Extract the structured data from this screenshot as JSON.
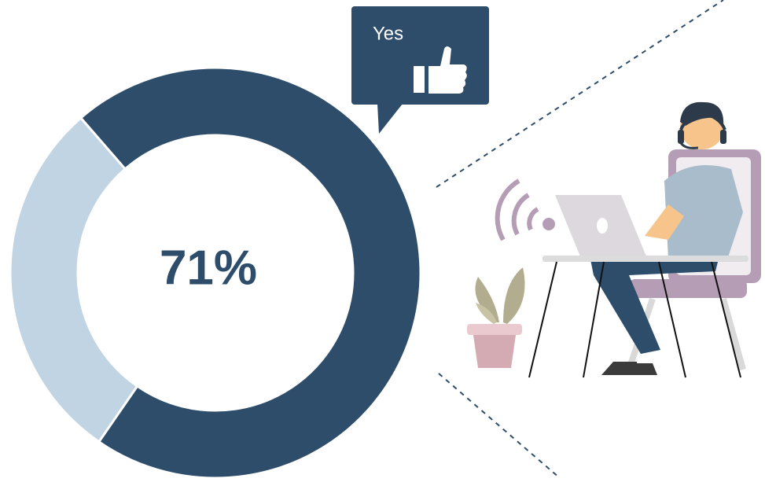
{
  "chart_data": {
    "type": "donut",
    "categories": [
      "Yes",
      null
    ],
    "values": [
      71,
      29
    ],
    "value_labels": [
      "71%",
      null
    ],
    "colors": [
      "#2d4d6b",
      "#c0d4e4"
    ]
  }
}
